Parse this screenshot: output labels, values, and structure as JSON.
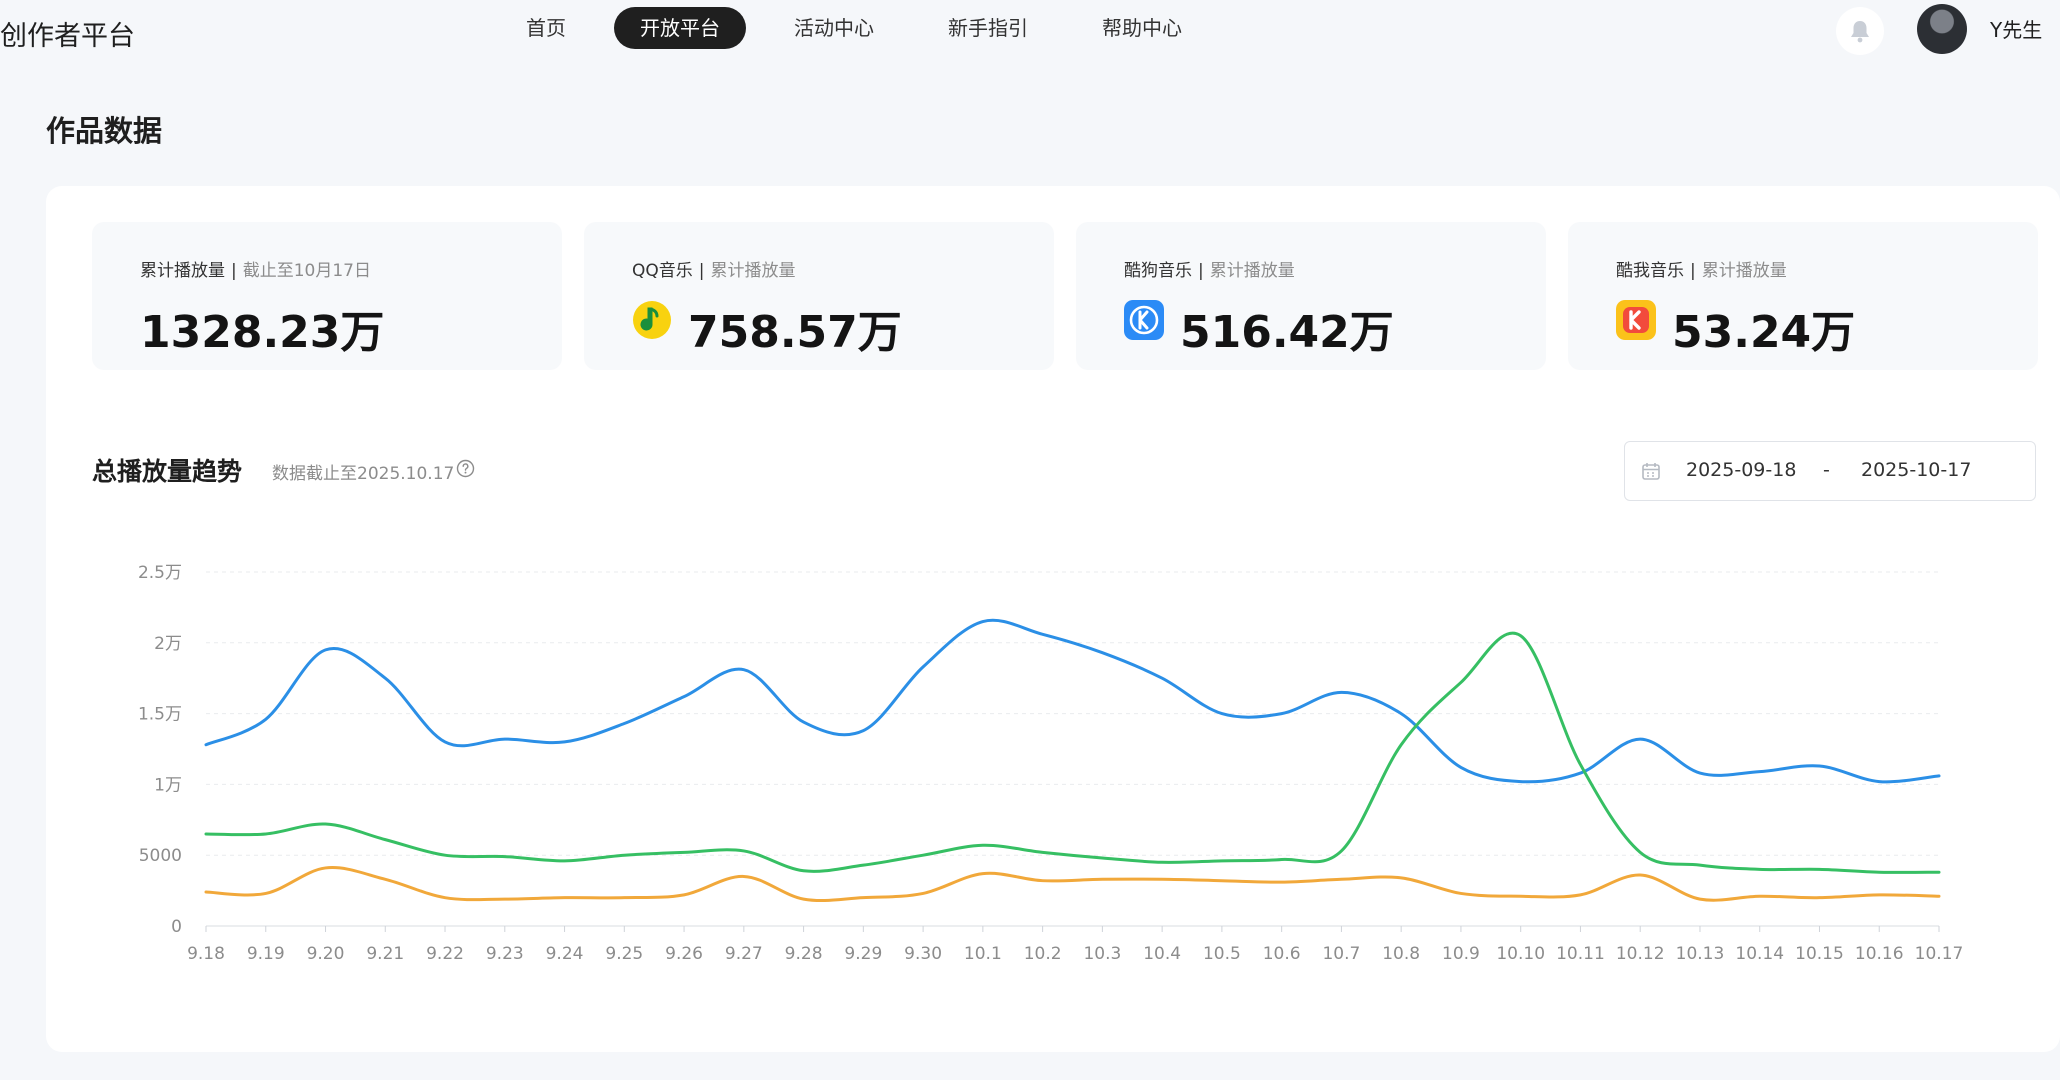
{
  "header": {
    "brand": "创作者平台",
    "nav": [
      "首页",
      "开放平台",
      "活动中心",
      "新手指引",
      "帮助中心"
    ],
    "active_nav": "开放平台",
    "username": "Y先生",
    "icons": {
      "bell": "bell-icon",
      "avatar": "avatar"
    }
  },
  "page_title": "作品数据",
  "stats": [
    {
      "label": "累计播放量",
      "note": "截止至10月17日",
      "value": "1328.23万"
    },
    {
      "label": "QQ音乐",
      "note": "累计播放量",
      "value": "758.57万",
      "icon": "qq-music-icon",
      "color": "#f8d20f"
    },
    {
      "label": "酷狗音乐",
      "note": "累计播放量",
      "value": "516.42万",
      "icon": "kugou-icon",
      "color": "#2b8bf6"
    },
    {
      "label": "酷我音乐",
      "note": "累计播放量",
      "value": "53.24万",
      "icon": "kuwo-icon",
      "color": "#fbc21a"
    }
  ],
  "trend": {
    "title": "总播放量趋势",
    "subtitle": "数据截止至2025.10.17",
    "date_from": "2025-09-18",
    "date_sep": "-",
    "date_to": "2025-10-17"
  },
  "chart_data": {
    "type": "line",
    "x": [
      "9.18",
      "9.19",
      "9.20",
      "9.21",
      "9.22",
      "9.23",
      "9.24",
      "9.25",
      "9.26",
      "9.27",
      "9.28",
      "9.29",
      "9.30",
      "10.1",
      "10.2",
      "10.3",
      "10.4",
      "10.5",
      "10.6",
      "10.7",
      "10.8",
      "10.9",
      "10.10",
      "10.11",
      "10.12",
      "10.13",
      "10.14",
      "10.15",
      "10.16",
      "10.17"
    ],
    "y_ticks": [
      0,
      5000,
      10000,
      15000,
      20000,
      25000
    ],
    "y_tick_labels": [
      "0",
      "5000",
      "1万",
      "1.5万",
      "2万",
      "2.5万"
    ],
    "ylim": [
      0,
      25000
    ],
    "grid": true,
    "series": [
      {
        "color": "#2b8fe6",
        "values": [
          12800,
          14600,
          19500,
          17500,
          13000,
          13200,
          13000,
          14300,
          16200,
          18100,
          14400,
          13800,
          18300,
          21500,
          20600,
          19300,
          17500,
          15000,
          15000,
          16500,
          15000,
          11200,
          10200,
          10800,
          13200,
          10800,
          10900,
          11300,
          10200,
          10600
        ]
      },
      {
        "color": "#36bf63",
        "values": [
          6500,
          6500,
          7200,
          6100,
          5000,
          4900,
          4600,
          5000,
          5200,
          5300,
          3900,
          4300,
          5000,
          5700,
          5200,
          4800,
          4500,
          4600,
          4700,
          5300,
          12800,
          17200,
          20500,
          11400,
          5200,
          4300,
          4000,
          4000,
          3800,
          3800
        ]
      },
      {
        "color": "#f1a83a",
        "values": [
          2400,
          2300,
          4100,
          3300,
          2000,
          1900,
          2000,
          2000,
          2200,
          3500,
          1900,
          2000,
          2300,
          3700,
          3200,
          3300,
          3300,
          3200,
          3100,
          3300,
          3400,
          2300,
          2100,
          2200,
          3600,
          1900,
          2100,
          2000,
          2200,
          2100
        ]
      }
    ]
  }
}
